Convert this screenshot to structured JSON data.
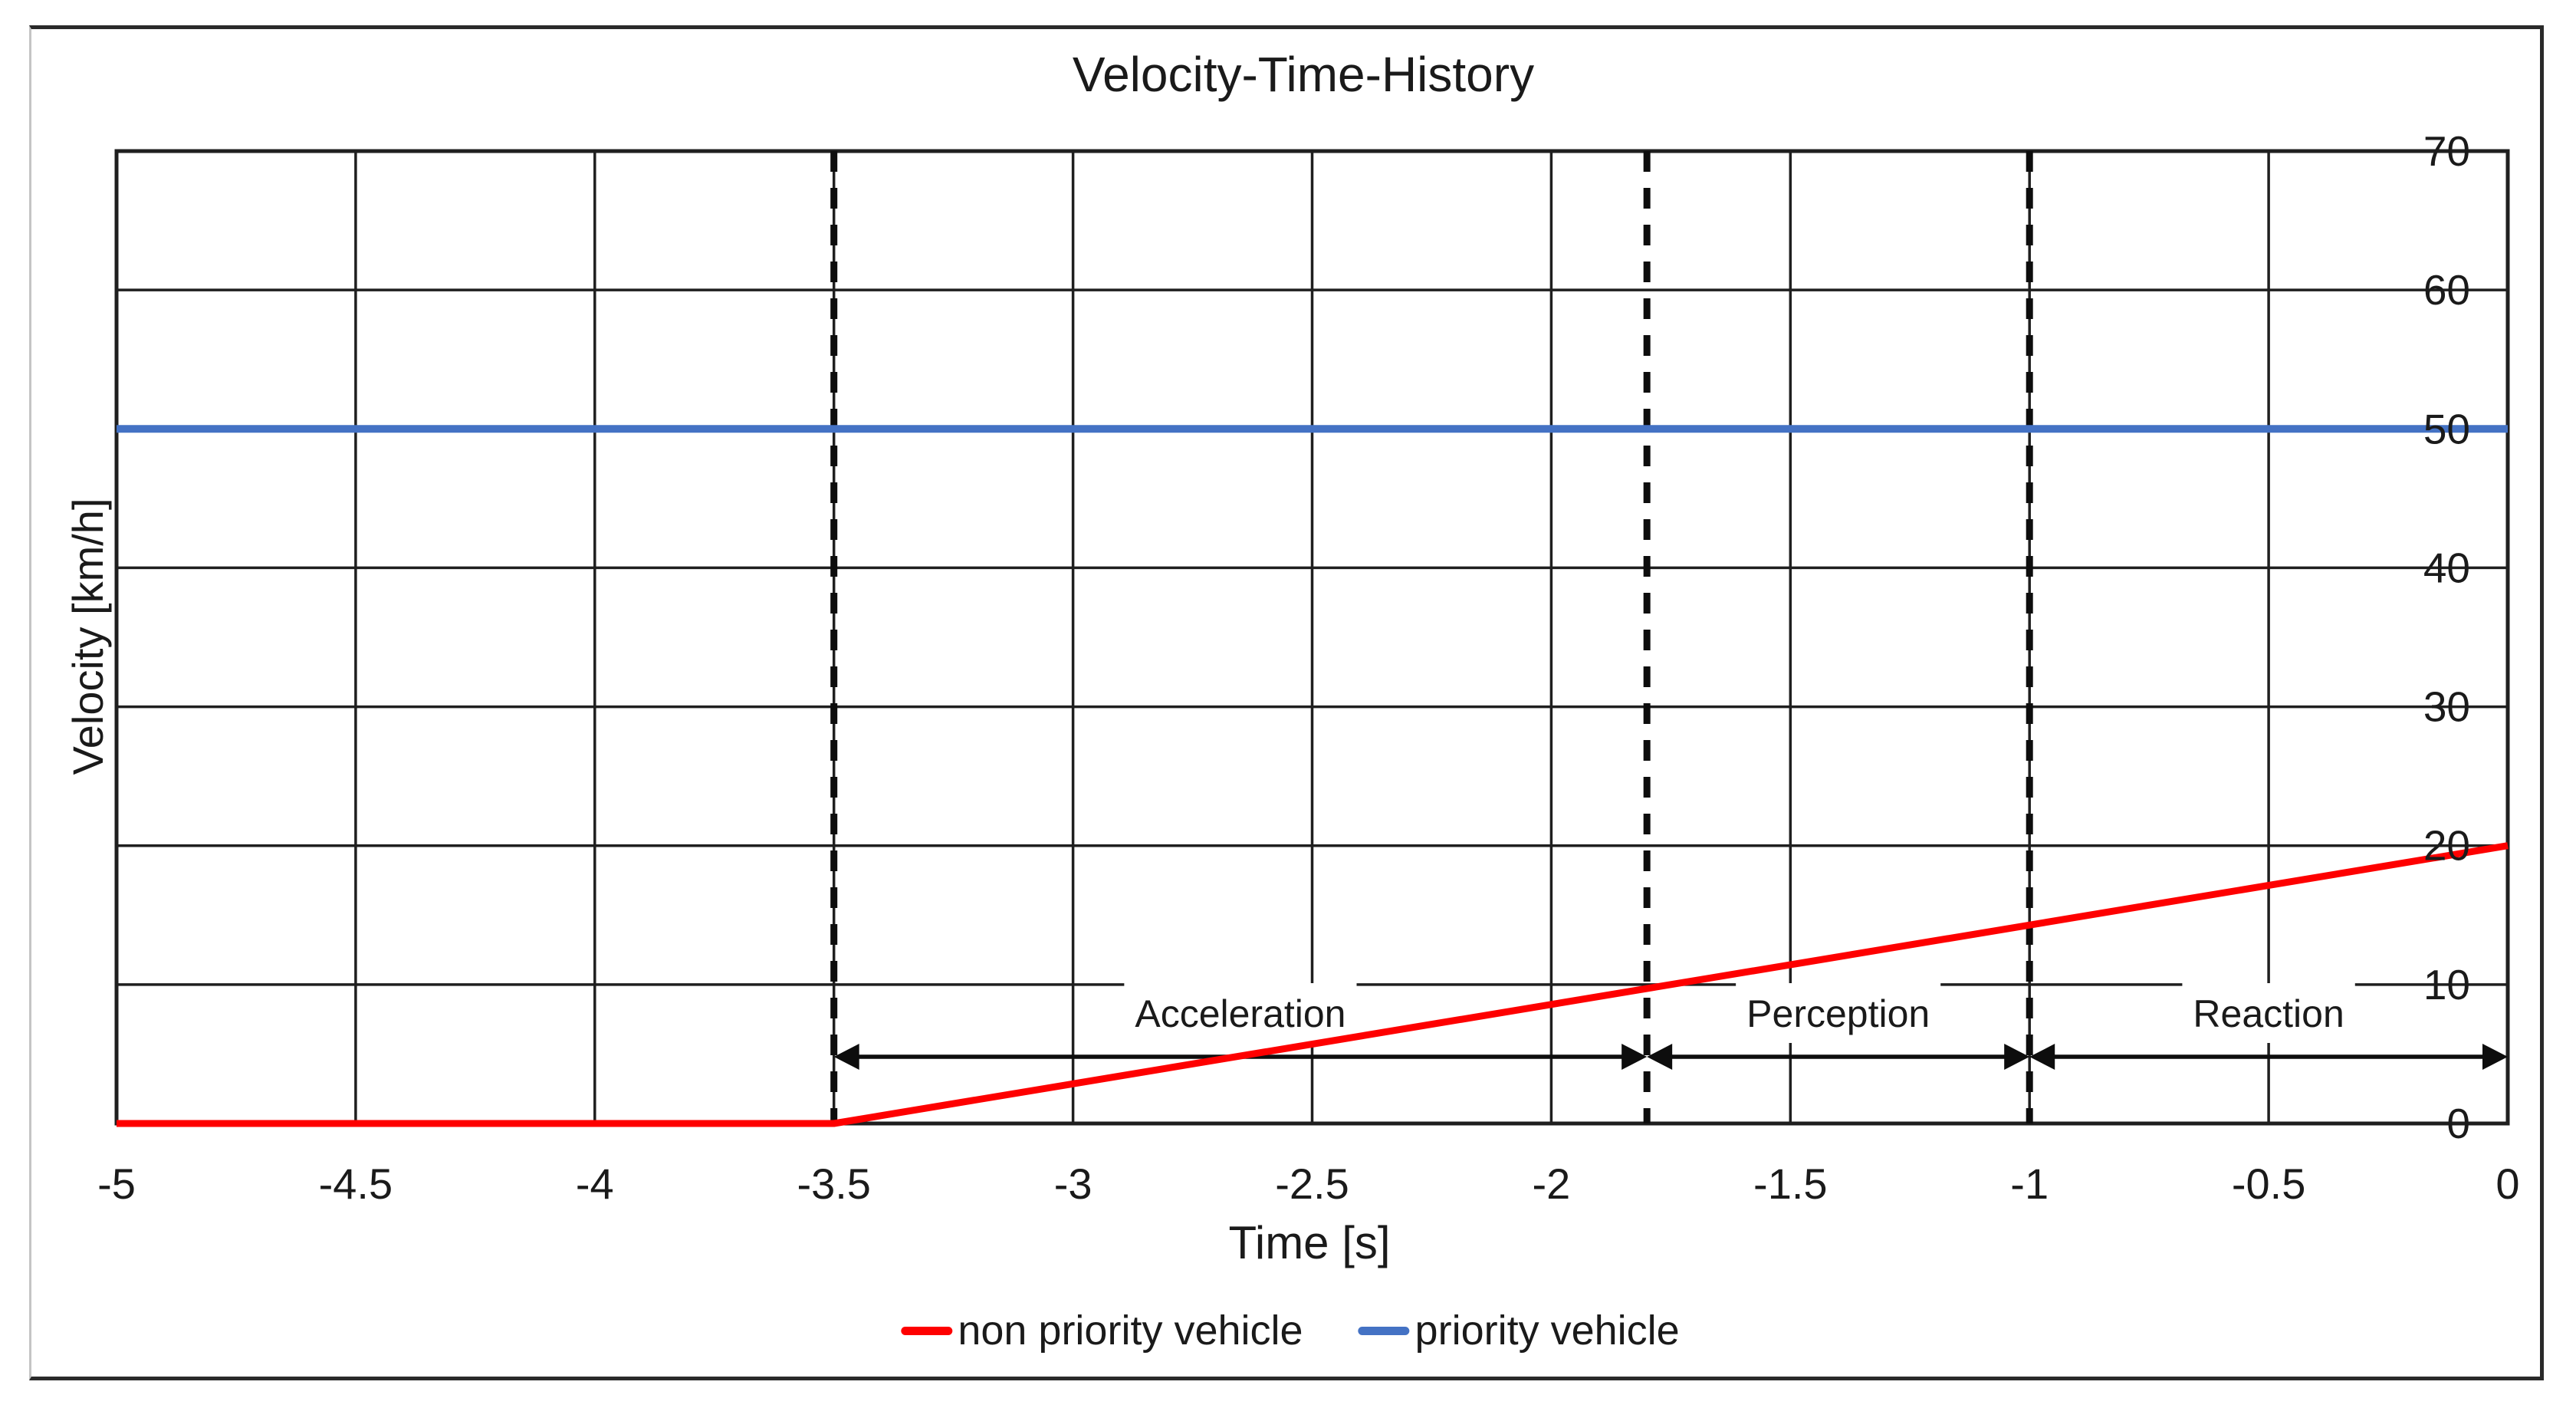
{
  "title": "Velocity-Time-History",
  "axes": {
    "x_label": "Time [s]",
    "y_label": "Velocity [km/h]"
  },
  "legend": [
    {
      "label": "non priority vehicle",
      "color": "#fe0000"
    },
    {
      "label": "priority vehicle",
      "color": "#4472c4"
    }
  ],
  "colors": {
    "grid": "#1f1f1f",
    "plot_border": "#1f1f1f",
    "text": "#1a1a1a",
    "annotation": "#0d0d0d",
    "red_series": "#fe0000",
    "blue_series": "#4472c4"
  },
  "chart_data": {
    "type": "line",
    "title": "Velocity-Time-History",
    "xlabel": "Time [s]",
    "ylabel": "Velocity [km/h]",
    "xlim": [
      -5,
      0
    ],
    "ylim": [
      0,
      70
    ],
    "x_ticks": [
      -5,
      -4.5,
      -4,
      -3.5,
      -3,
      -2.5,
      -2,
      -1.5,
      -1,
      -0.5,
      0
    ],
    "y_ticks": [
      0,
      10,
      20,
      30,
      40,
      50,
      60,
      70
    ],
    "grid": true,
    "y_tick_side": "right",
    "legend_position": "bottom",
    "series": [
      {
        "name": "non priority vehicle",
        "color": "#fe0000",
        "points": [
          [
            -5,
            0
          ],
          [
            -3.5,
            0
          ],
          [
            0,
            20
          ]
        ]
      },
      {
        "name": "priority vehicle",
        "color": "#4472c4",
        "points": [
          [
            -5,
            50
          ],
          [
            0,
            50
          ]
        ]
      }
    ],
    "annotations": {
      "dashed_lines_x": [
        -3.5,
        -1.8,
        -1
      ],
      "phases": [
        {
          "label": "Acceleration",
          "from": -3.5,
          "to": -1.8
        },
        {
          "label": "Perception",
          "from": -1.8,
          "to": -1
        },
        {
          "label": "Reaction",
          "from": -1,
          "to": 0
        }
      ],
      "arrow_y_value": 4.8,
      "phase_label_y_value": 7.95
    }
  }
}
